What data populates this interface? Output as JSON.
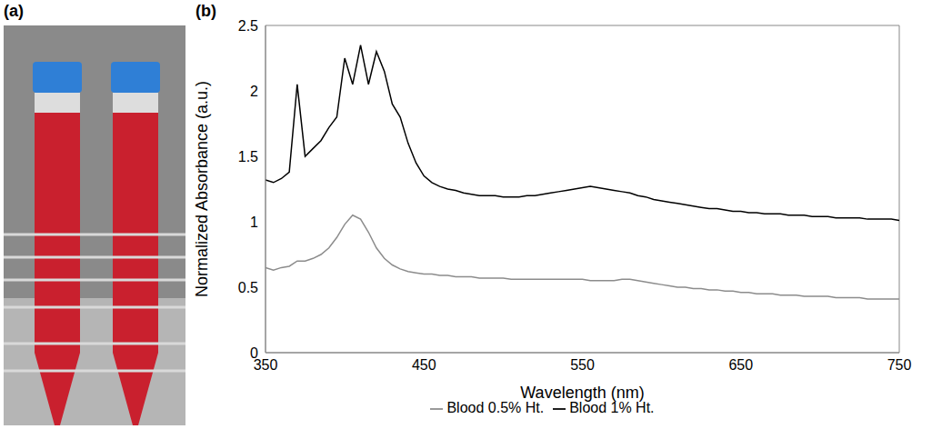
{
  "photo_panel": {
    "label": "(a)"
  },
  "chart_data": {
    "panel": "(b)",
    "type": "line",
    "x_label": "Wavelength (nm)",
    "y_label": "Normalized Absorbance (a.u.)",
    "xlim": [
      350,
      750
    ],
    "xticks": [
      350,
      450,
      550,
      650,
      750
    ],
    "ylim": [
      0,
      2.5
    ],
    "yticks": [
      0,
      0.5,
      1,
      1.5,
      2,
      2.5
    ],
    "grid": false,
    "legend": "bottom",
    "x": [
      350,
      355,
      360,
      365,
      370,
      375,
      380,
      385,
      390,
      395,
      400,
      405,
      410,
      415,
      420,
      425,
      430,
      435,
      440,
      445,
      450,
      455,
      460,
      465,
      470,
      475,
      480,
      485,
      490,
      495,
      500,
      505,
      510,
      515,
      520,
      525,
      530,
      535,
      540,
      545,
      550,
      555,
      560,
      565,
      570,
      575,
      580,
      585,
      590,
      595,
      600,
      605,
      610,
      615,
      620,
      625,
      630,
      635,
      640,
      645,
      650,
      655,
      660,
      665,
      670,
      675,
      680,
      685,
      690,
      695,
      700,
      705,
      710,
      715,
      720,
      725,
      730,
      735,
      740,
      745,
      750
    ],
    "series": [
      {
        "name": "Blood 0.5% Ht.",
        "color": "#8c8c8c",
        "values": [
          0.65,
          0.63,
          0.65,
          0.66,
          0.7,
          0.7,
          0.72,
          0.75,
          0.8,
          0.88,
          0.98,
          1.05,
          1.02,
          0.92,
          0.8,
          0.72,
          0.67,
          0.64,
          0.62,
          0.61,
          0.6,
          0.6,
          0.59,
          0.59,
          0.58,
          0.58,
          0.58,
          0.57,
          0.57,
          0.57,
          0.57,
          0.56,
          0.56,
          0.56,
          0.56,
          0.56,
          0.56,
          0.56,
          0.56,
          0.56,
          0.56,
          0.55,
          0.55,
          0.55,
          0.55,
          0.56,
          0.56,
          0.55,
          0.54,
          0.53,
          0.52,
          0.51,
          0.5,
          0.5,
          0.49,
          0.49,
          0.48,
          0.48,
          0.47,
          0.47,
          0.46,
          0.46,
          0.45,
          0.45,
          0.45,
          0.44,
          0.44,
          0.44,
          0.43,
          0.43,
          0.43,
          0.43,
          0.42,
          0.42,
          0.42,
          0.42,
          0.41,
          0.41,
          0.41,
          0.41,
          0.41
        ]
      },
      {
        "name": "Blood 1% Ht.",
        "color": "#000000",
        "values": [
          1.32,
          1.3,
          1.33,
          1.38,
          2.05,
          1.5,
          1.56,
          1.62,
          1.72,
          1.8,
          2.25,
          2.05,
          2.35,
          2.05,
          2.3,
          2.15,
          1.9,
          1.8,
          1.6,
          1.45,
          1.35,
          1.3,
          1.27,
          1.25,
          1.24,
          1.22,
          1.21,
          1.2,
          1.2,
          1.2,
          1.19,
          1.19,
          1.19,
          1.2,
          1.2,
          1.21,
          1.22,
          1.23,
          1.24,
          1.25,
          1.26,
          1.27,
          1.26,
          1.25,
          1.24,
          1.23,
          1.22,
          1.2,
          1.19,
          1.17,
          1.16,
          1.15,
          1.14,
          1.13,
          1.12,
          1.11,
          1.1,
          1.1,
          1.09,
          1.08,
          1.08,
          1.07,
          1.07,
          1.06,
          1.06,
          1.06,
          1.05,
          1.05,
          1.05,
          1.04,
          1.04,
          1.04,
          1.03,
          1.03,
          1.03,
          1.03,
          1.02,
          1.02,
          1.02,
          1.02,
          1.01
        ]
      }
    ]
  }
}
